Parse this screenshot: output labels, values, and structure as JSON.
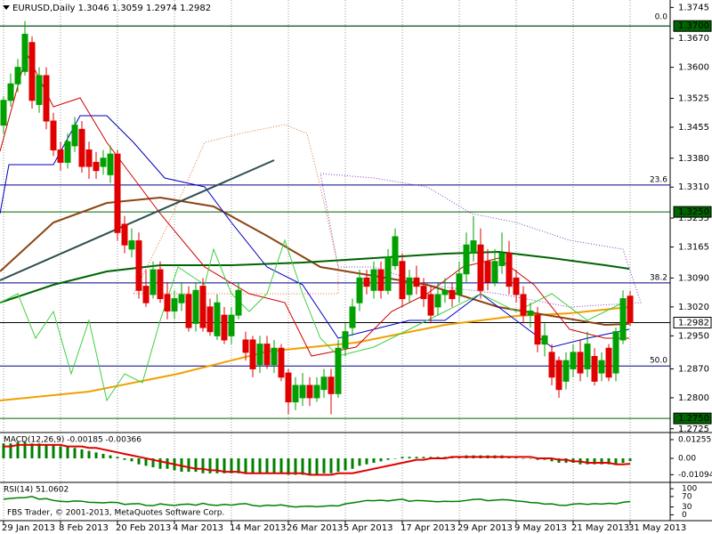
{
  "chart_data": {
    "type": "candlestick",
    "title": "EURUSD,Daily 1.3046 1.3059 1.2974 1.2982",
    "categories": [
      "29 Jan 2013",
      null,
      null,
      null,
      null,
      null,
      null,
      null,
      "8 Feb 2013",
      null,
      null,
      null,
      null,
      null,
      null,
      null,
      "20 Feb 2013",
      null,
      null,
      null,
      null,
      null,
      null,
      null,
      "4 Mar 2013",
      null,
      null,
      null,
      null,
      null,
      null,
      null,
      "14 Mar 2013",
      null,
      null,
      null,
      null,
      null,
      null,
      null,
      "26 Mar 2013",
      null,
      null,
      null,
      null,
      null,
      null,
      null,
      "5 Apr 2013",
      null,
      null,
      null,
      null,
      null,
      null,
      null,
      "17 Apr 2013",
      null,
      null,
      null,
      null,
      null,
      null,
      null,
      "29 Apr 2013",
      null,
      null,
      null,
      null,
      null,
      null,
      null,
      "9 May 2013",
      null,
      null,
      null,
      null,
      null,
      null,
      null,
      "21 May 2013",
      null,
      null,
      null,
      null,
      null,
      null,
      null,
      "31 May 2013"
    ],
    "open": [
      1.346,
      1.352,
      1.356,
      1.359,
      1.366,
      1.351,
      1.358,
      1.347,
      1.34,
      1.337,
      1.341,
      1.345,
      1.34,
      1.337,
      1.336,
      1.334,
      1.339,
      1.322,
      1.316,
      1.318,
      1.307,
      1.305,
      1.311,
      1.305,
      1.301,
      1.303,
      1.305,
      1.298,
      1.307,
      1.302,
      1.295,
      1.3,
      1.295,
      1.3,
      1.294,
      1.294,
      1.288,
      1.293,
      1.288,
      1.292,
      1.286,
      1.279,
      1.28,
      1.283,
      1.28,
      1.282,
      1.285,
      1.281,
      1.292,
      1.297,
      1.303,
      1.309,
      1.306,
      1.311,
      1.306,
      1.312,
      1.313,
      1.305,
      1.309,
      1.307,
      1.305,
      1.302,
      1.305,
      1.306,
      1.305,
      1.31,
      1.315,
      1.317,
      1.313,
      1.308,
      1.312,
      1.315,
      1.309,
      1.305,
      1.3,
      1.3,
      1.293,
      1.291,
      1.289,
      1.284,
      1.287,
      1.291,
      1.287,
      1.29,
      1.286,
      1.292,
      1.286,
      1.294,
      1.3046
    ],
    "high": [
      1.353,
      1.3585,
      1.362,
      1.3712,
      1.3675,
      1.36,
      1.36,
      1.349,
      1.342,
      1.344,
      1.348,
      1.347,
      1.342,
      1.3395,
      1.34,
      1.341,
      1.34,
      1.324,
      1.321,
      1.32,
      1.311,
      1.313,
      1.313,
      1.308,
      1.306,
      1.308,
      1.307,
      1.308,
      1.309,
      1.304,
      1.305,
      1.302,
      1.302,
      1.308,
      1.296,
      1.295,
      1.295,
      1.295,
      1.294,
      1.293,
      1.287,
      1.285,
      1.286,
      1.285,
      1.285,
      1.287,
      1.287,
      1.294,
      1.298,
      1.304,
      1.311,
      1.311,
      1.313,
      1.313,
      1.316,
      1.321,
      1.315,
      1.311,
      1.312,
      1.309,
      1.307,
      1.308,
      1.309,
      1.308,
      1.313,
      1.32,
      1.324,
      1.321,
      1.316,
      1.316,
      1.32,
      1.318,
      1.311,
      1.307,
      1.303,
      1.302,
      1.298,
      1.293,
      1.29,
      1.291,
      1.293,
      1.294,
      1.296,
      1.292,
      1.291,
      1.293,
      1.297,
      1.306,
      1.3059
    ],
    "low": [
      1.344,
      1.3505,
      1.354,
      1.358,
      1.35,
      1.349,
      1.345,
      1.3385,
      1.335,
      1.3355,
      1.3395,
      1.3345,
      1.333,
      1.333,
      1.334,
      1.332,
      1.318,
      1.315,
      1.314,
      1.304,
      1.302,
      1.304,
      1.303,
      1.299,
      1.299,
      1.301,
      1.296,
      1.296,
      1.296,
      1.295,
      1.294,
      1.293,
      1.293,
      1.299,
      1.289,
      1.285,
      1.286,
      1.287,
      1.286,
      1.284,
      1.276,
      1.277,
      1.278,
      1.278,
      1.279,
      1.28,
      1.276,
      1.28,
      1.29,
      1.295,
      1.301,
      1.305,
      1.304,
      1.304,
      1.305,
      1.311,
      1.302,
      1.303,
      1.305,
      1.302,
      1.298,
      1.3,
      1.303,
      1.302,
      1.303,
      1.308,
      1.313,
      1.304,
      1.306,
      1.307,
      1.31,
      1.305,
      1.303,
      1.298,
      1.297,
      1.291,
      1.29,
      1.283,
      1.28,
      1.282,
      1.285,
      1.284,
      1.285,
      1.283,
      1.284,
      1.284,
      1.284,
      1.293,
      1.2974
    ],
    "close": [
      1.352,
      1.356,
      1.36,
      1.368,
      1.352,
      1.358,
      1.347,
      1.34,
      1.337,
      1.342,
      1.346,
      1.336,
      1.336,
      1.335,
      1.338,
      1.339,
      1.32,
      1.317,
      1.318,
      1.306,
      1.303,
      1.311,
      1.304,
      1.301,
      1.304,
      1.305,
      1.297,
      1.306,
      1.297,
      1.296,
      1.303,
      1.294,
      1.3,
      1.306,
      1.291,
      1.287,
      1.293,
      1.288,
      1.292,
      1.285,
      1.279,
      1.283,
      1.283,
      1.28,
      1.283,
      1.285,
      1.281,
      1.292,
      1.296,
      1.302,
      1.309,
      1.307,
      1.311,
      1.306,
      1.314,
      1.319,
      1.304,
      1.309,
      1.307,
      1.304,
      1.3,
      1.305,
      1.306,
      1.304,
      1.31,
      1.317,
      1.318,
      1.306,
      1.308,
      1.313,
      1.315,
      1.307,
      1.305,
      1.3,
      1.301,
      1.293,
      1.295,
      1.285,
      1.282,
      1.289,
      1.291,
      1.286,
      1.293,
      1.284,
      1.289,
      1.285,
      1.296,
      1.304,
      1.2982
    ],
    "up_color": "#00a000",
    "down_color": "#e00000",
    "grid": true,
    "ylim": [
      1.2718,
      1.3763
    ],
    "yticks": [
      {
        "value": 1.3745,
        "label": "1.3745"
      },
      {
        "value": 1.367,
        "label": "1.3670"
      },
      {
        "value": 1.36,
        "label": "1.3600"
      },
      {
        "value": 1.3525,
        "label": "1.3525"
      },
      {
        "value": 1.3455,
        "label": "1.3455"
      },
      {
        "value": 1.338,
        "label": "1.3380"
      },
      {
        "value": 1.331,
        "label": "1.3310"
      },
      {
        "value": 1.3235,
        "label": "1.3235"
      },
      {
        "value": 1.3165,
        "label": "1.3165"
      },
      {
        "value": 1.309,
        "label": "1.3090"
      },
      {
        "value": 1.302,
        "label": "1.3020"
      },
      {
        "value": 1.295,
        "label": "1.2950"
      },
      {
        "value": 1.287,
        "label": "1.2870"
      },
      {
        "value": 1.28,
        "label": "1.2800"
      },
      {
        "value": 1.2725,
        "label": "1.2725"
      }
    ],
    "price_levels": [
      {
        "value": 1.37,
        "label": "1.3700",
        "color": "#006400",
        "text_color": "#ffffff"
      },
      {
        "value": 1.325,
        "label": "1.3250",
        "color": "#006400",
        "text_color": "#ffffff"
      },
      {
        "value": 1.2982,
        "label": "1.2982",
        "color": "#ffffff",
        "text_color": "#000000"
      },
      {
        "value": 1.275,
        "label": "1.2750",
        "color": "#006400",
        "text_color": "#ffffff"
      }
    ],
    "fib_levels": [
      {
        "label": "0.0",
        "price": 1.37
      },
      {
        "label": "23.6",
        "price": 1.3315
      },
      {
        "label": "38.2",
        "price": 1.3078
      },
      {
        "label": "50.0",
        "price": 1.2877
      }
    ],
    "fib_color": "#000080",
    "macd": {
      "label": "MACD(12,26,9) -0.00185 -0.00366",
      "histogram_color": "#008000",
      "signal_color": "#e00000",
      "ylim": [
        -0.0155,
        0.0167
      ],
      "yticks": [
        0.01255,
        {
          "value": 0,
          "label": "0.00"
        },
        -0.01094
      ],
      "histogram": [
        0.01,
        0.01,
        0.011,
        0.011,
        0.01,
        0.01,
        0.009,
        0.009,
        0.008,
        0.008,
        0.007,
        0.006,
        0.005,
        0.004,
        0.003,
        0.002,
        0.001,
        -0.001,
        -0.002,
        -0.004,
        -0.005,
        -0.006,
        -0.007,
        -0.007,
        -0.008,
        -0.009,
        -0.009,
        -0.009,
        -0.01,
        -0.01,
        -0.01,
        -0.01,
        -0.01,
        -0.01,
        -0.01,
        -0.01,
        -0.01,
        -0.01,
        -0.01,
        -0.01,
        -0.011,
        -0.011,
        -0.011,
        -0.011,
        -0.011,
        -0.01,
        -0.01,
        -0.009,
        -0.008,
        -0.007,
        -0.005,
        -0.004,
        -0.003,
        -0.002,
        -0.001,
        0.0,
        0.001,
        0.001,
        0.001,
        0.001,
        0.001,
        0.001,
        0.001,
        0.001,
        0.001,
        0.002,
        0.002,
        0.002,
        0.002,
        0.002,
        0.002,
        0.001,
        0.001,
        0.0,
        0.0,
        -0.001,
        -0.001,
        -0.002,
        -0.003,
        -0.003,
        -0.003,
        -0.004,
        -0.004,
        -0.004,
        -0.004,
        -0.004,
        -0.004,
        -0.003,
        -0.00185
      ],
      "signal": [
        0.008,
        0.008,
        0.009,
        0.009,
        0.009,
        0.009,
        0.009,
        0.009,
        0.009,
        0.008,
        0.008,
        0.008,
        0.007,
        0.007,
        0.006,
        0.005,
        0.004,
        0.003,
        0.002,
        0.001,
        0.0,
        -0.001,
        -0.002,
        -0.003,
        -0.004,
        -0.005,
        -0.006,
        -0.007,
        -0.007,
        -0.008,
        -0.008,
        -0.009,
        -0.009,
        -0.009,
        -0.01,
        -0.01,
        -0.01,
        -0.01,
        -0.01,
        -0.01,
        -0.01,
        -0.01,
        -0.01,
        -0.011,
        -0.011,
        -0.011,
        -0.011,
        -0.01,
        -0.01,
        -0.01,
        -0.009,
        -0.008,
        -0.007,
        -0.006,
        -0.005,
        -0.004,
        -0.003,
        -0.002,
        -0.001,
        -0.001,
        0.0,
        0.0,
        0.0,
        0.001,
        0.001,
        0.001,
        0.001,
        0.001,
        0.001,
        0.001,
        0.001,
        0.001,
        0.001,
        0.001,
        0.001,
        0.0,
        0.0,
        0.0,
        -0.001,
        -0.001,
        -0.002,
        -0.002,
        -0.003,
        -0.003,
        -0.003,
        -0.003,
        -0.004,
        -0.004,
        -0.00366
      ]
    },
    "rsi": {
      "label": "RSI(14) 51.0602",
      "color": "#008000",
      "ylim": [
        -19,
        117.5
      ],
      "yticks": [
        100,
        70,
        30,
        0
      ],
      "values": [
        60,
        63,
        65,
        66,
        70,
        60,
        62,
        55,
        52,
        50,
        53,
        52,
        48,
        47,
        46,
        48,
        47,
        40,
        42,
        43,
        36,
        35,
        42,
        38,
        36,
        40,
        41,
        37,
        44,
        38,
        36,
        40,
        37,
        41,
        43,
        36,
        33,
        37,
        35,
        38,
        33,
        30,
        32,
        33,
        31,
        33,
        35,
        34,
        42,
        46,
        50,
        55,
        54,
        56,
        53,
        57,
        60,
        52,
        55,
        54,
        52,
        50,
        52,
        51,
        52,
        55,
        59,
        60,
        54,
        56,
        58,
        57,
        53,
        51,
        47,
        46,
        41,
        42,
        37,
        36,
        41,
        43,
        40,
        43,
        41,
        44,
        42,
        48,
        51.0602
      ]
    },
    "copyright": "FBS Trader, © 2001-2013, MetaQuotes Software Corp."
  }
}
